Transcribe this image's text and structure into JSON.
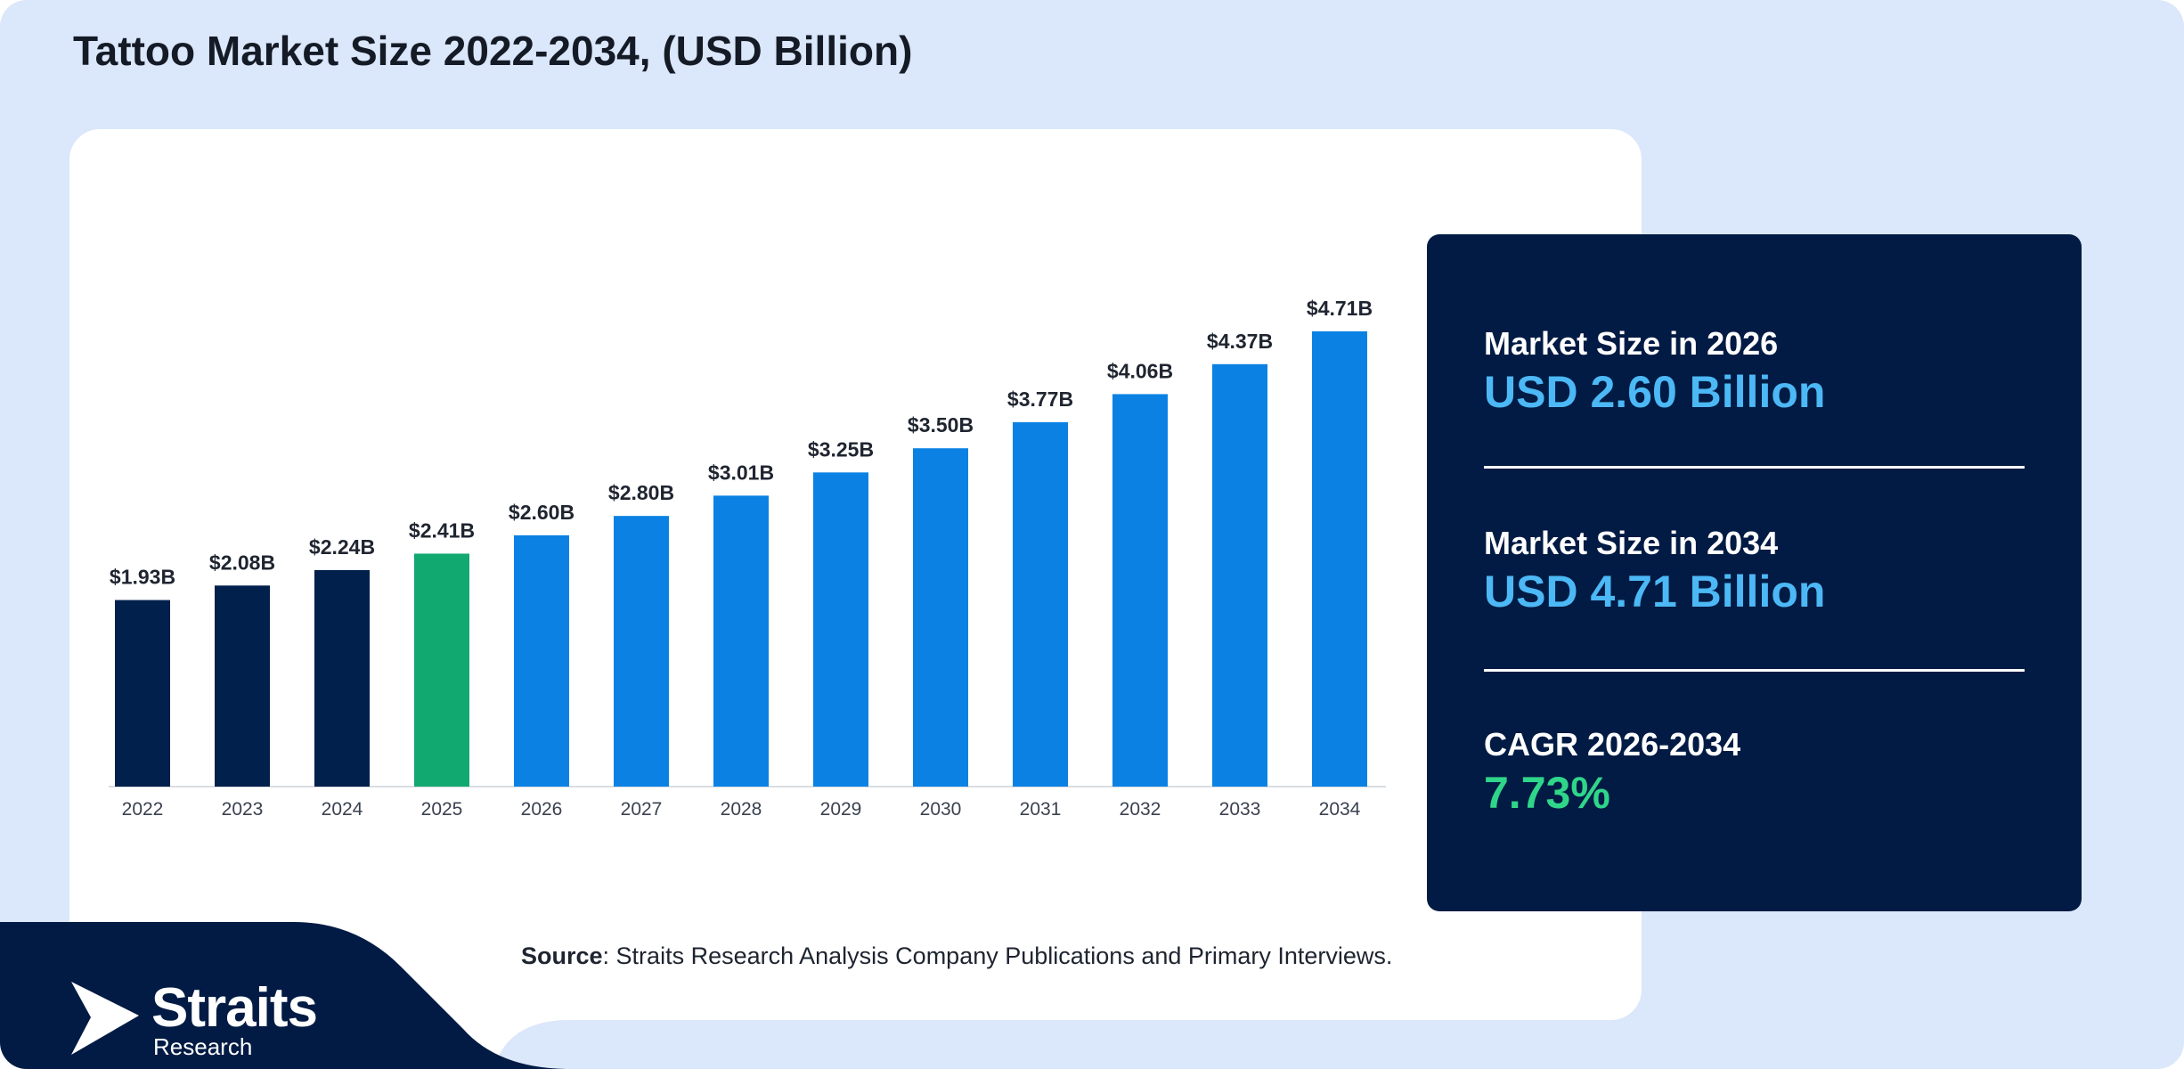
{
  "title": "Tattoo Market Size 2022-2034, (USD Billion)",
  "chart_data": {
    "type": "bar",
    "categories": [
      "2022",
      "2023",
      "2024",
      "2025",
      "2026",
      "2027",
      "2028",
      "2029",
      "2030",
      "2031",
      "2032",
      "2033",
      "2034"
    ],
    "values": [
      1.93,
      2.08,
      2.24,
      2.41,
      2.6,
      2.8,
      3.01,
      3.25,
      3.5,
      3.77,
      4.06,
      4.37,
      4.71
    ],
    "data_labels": [
      "$1.93B",
      "$2.08B",
      "$2.24B",
      "$2.41B",
      "$2.60B",
      "$2.80B",
      "$3.01B",
      "$3.25B",
      "$3.50B",
      "$3.77B",
      "$4.06B",
      "$4.37B",
      "$4.71B"
    ],
    "bar_colors": [
      "#02204c",
      "#02204c",
      "#02204c",
      "#12a971",
      "#0b82e3",
      "#0b82e3",
      "#0b82e3",
      "#0b82e3",
      "#0b82e3",
      "#0b82e3",
      "#0b82e3",
      "#0b82e3",
      "#0b82e3"
    ],
    "title": "Tattoo Market Size 2022-2034, (USD Billion)",
    "xlabel": "",
    "ylabel": "",
    "ylim": [
      0,
      5.05
    ],
    "grid": false,
    "legend": "none"
  },
  "stats": [
    {
      "label": "Market Size in 2026",
      "value": "USD 2.60 Billion"
    },
    {
      "label": "Market Size in 2034",
      "value": "USD 4.71 Billion"
    },
    {
      "label": "CAGR 2026-2034",
      "value": "7.73%"
    }
  ],
  "source": {
    "prefix": "Source",
    "text": ": Straits Research Analysis Company Publications and Primary Interviews."
  },
  "logo": {
    "name": "Straits",
    "sub": "Research"
  },
  "colors": {
    "background": "#dbe7fa",
    "navy": "#021b44",
    "accent_blue": "#4cb8f5",
    "accent_green": "#2fd68a"
  }
}
